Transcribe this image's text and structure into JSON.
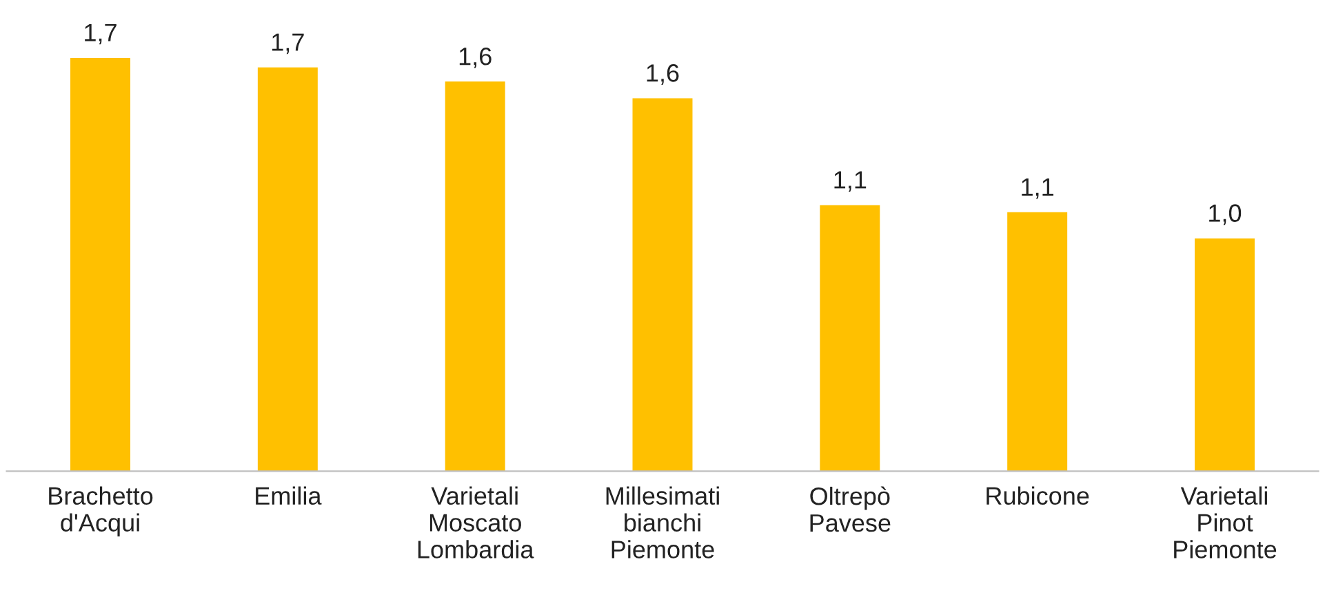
{
  "chart_data": {
    "type": "bar",
    "categories": [
      "Brachetto\nd'Acqui",
      "Emilia",
      "Varietali\nMoscato\nLombardia",
      "Millesimati\nbianchi\nPiemonte",
      "Oltrepò\nPavese",
      "Rubicone",
      "Varietali\nPinot\nPiemonte"
    ],
    "values": [
      1.74,
      1.7,
      1.64,
      1.57,
      1.12,
      1.09,
      0.98
    ],
    "value_labels": [
      "1,7",
      "1,7",
      "1,6",
      "1,6",
      "1,1",
      "1,1",
      "1,0"
    ],
    "color": "#ffc000",
    "grid": false,
    "legend": false,
    "tick_labels": "x"
  }
}
